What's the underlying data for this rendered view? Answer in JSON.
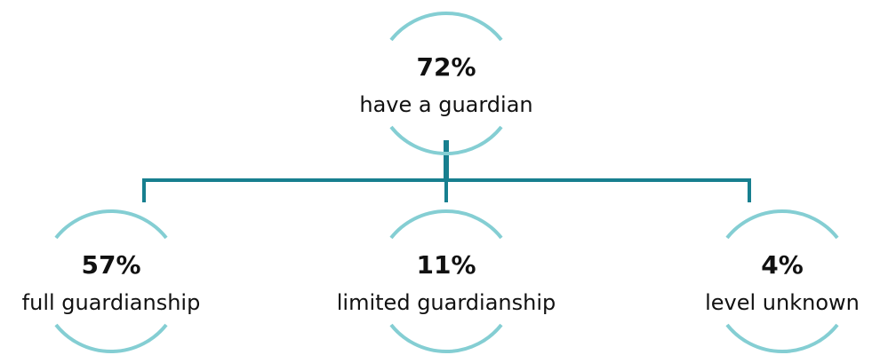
{
  "nodes": [
    {
      "value": "72%",
      "label": "have a guardian"
    },
    {
      "value": "57%",
      "label": "full guardianship"
    },
    {
      "value": "11%",
      "label": "limited guardianship"
    },
    {
      "value": "4%",
      "label": "level unknown"
    }
  ]
}
